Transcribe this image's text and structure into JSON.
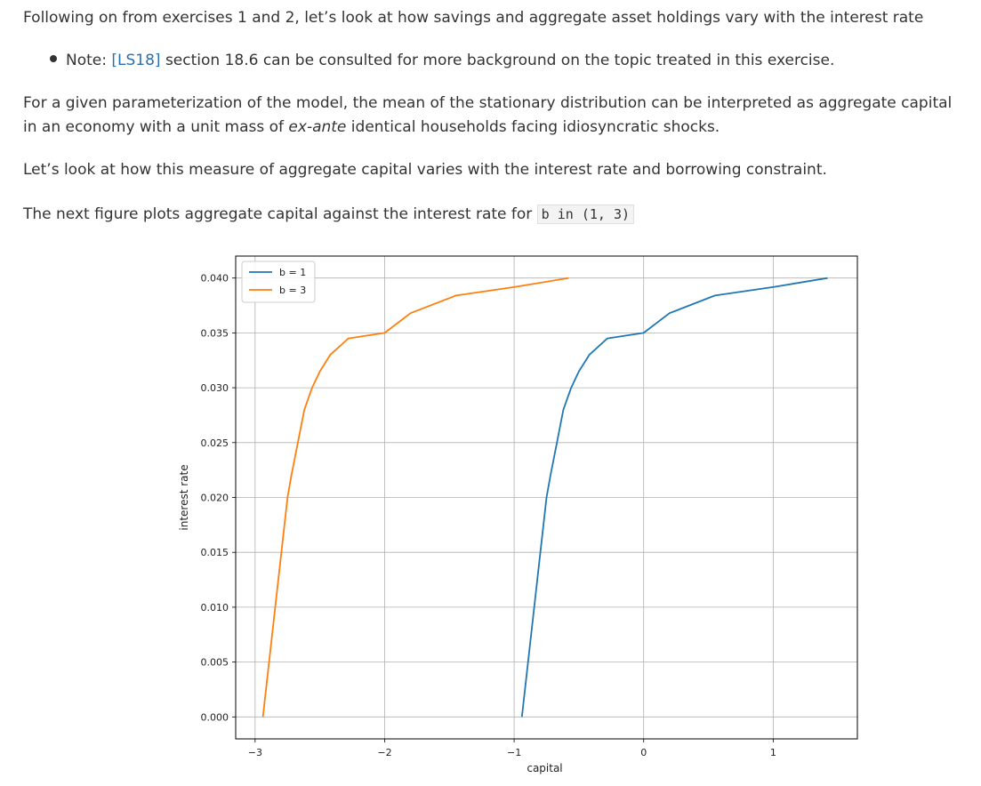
{
  "text": {
    "p1": "Following on from exercises 1 and 2, let’s look at how savings and aggregate asset holdings vary with the interest rate",
    "note_prefix": "Note: ",
    "note_link": "[LS18]",
    "note_suffix": " section 18.6 can be consulted for more background on the topic treated in this exercise.",
    "p2_a": "For a given parameterization of the model, the mean of the stationary distribution can be interpreted as aggregate capital in an economy with a unit mass of ",
    "p2_em": "ex-ante",
    "p2_b": " identical households facing idiosyncratic shocks.",
    "p3": "Let’s look at how this measure of aggregate capital varies with the interest rate and borrowing constraint.",
    "p4": "The next figure plots aggregate capital against the interest rate for ",
    "p4_code": "b in (1, 3)"
  },
  "colors": {
    "link": "#2a6fb0",
    "series_b1": "#1f77b4",
    "series_b3": "#ff7f0e"
  },
  "chart_data": {
    "type": "line",
    "xlabel": "capital",
    "ylabel": "interest rate",
    "xlim": [
      -3.15,
      1.65
    ],
    "ylim": [
      -0.002,
      0.042
    ],
    "xticks": [
      -3,
      -2,
      -1,
      0,
      1
    ],
    "xtick_labels": [
      "−3",
      "−2",
      "−1",
      "0",
      "1"
    ],
    "yticks": [
      0.0,
      0.005,
      0.01,
      0.015,
      0.02,
      0.025,
      0.03,
      0.035,
      0.04
    ],
    "ytick_labels": [
      "0.000",
      "0.005",
      "0.010",
      "0.015",
      "0.020",
      "0.025",
      "0.030",
      "0.035",
      "0.040"
    ],
    "grid": true,
    "legend_position": "top-left",
    "series": [
      {
        "name": "b = 1",
        "color": "#1f77b4",
        "x": [
          -0.94,
          -0.75,
          -0.72,
          -0.67,
          -0.62,
          -0.56,
          -0.5,
          -0.42,
          -0.28,
          0.0,
          0.2,
          0.55,
          1.01,
          1.42
        ],
        "y": [
          0.0,
          0.02,
          0.022,
          0.025,
          0.028,
          0.03,
          0.0315,
          0.033,
          0.0345,
          0.035,
          0.0368,
          0.0384,
          0.0392,
          0.04
        ]
      },
      {
        "name": "b = 3",
        "color": "#ff7f0e",
        "x": [
          -2.94,
          -2.75,
          -2.72,
          -2.67,
          -2.62,
          -2.56,
          -2.5,
          -2.42,
          -2.28,
          -2.0,
          -1.8,
          -1.45,
          -0.99,
          -0.58
        ],
        "y": [
          0.0,
          0.02,
          0.022,
          0.025,
          0.028,
          0.03,
          0.0315,
          0.033,
          0.0345,
          0.035,
          0.0368,
          0.0384,
          0.0392,
          0.04
        ]
      }
    ]
  }
}
